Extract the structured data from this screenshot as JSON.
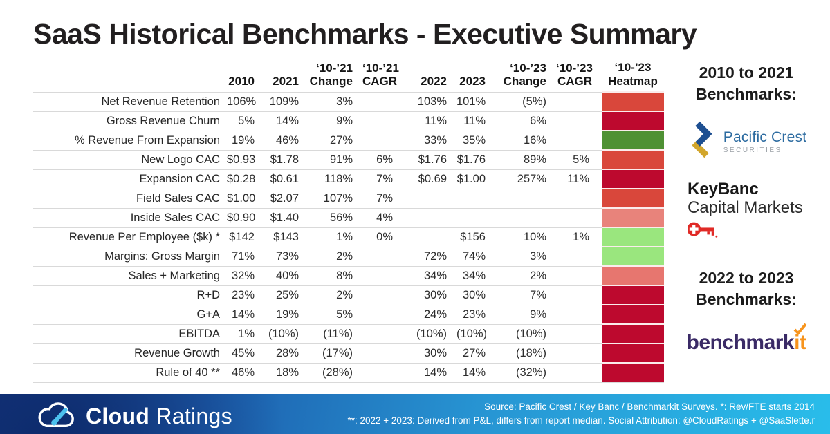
{
  "title": "SaaS Historical Benchmarks - Executive Summary",
  "chart_data": {
    "type": "table",
    "title": "SaaS Historical Benchmarks - Executive Summary",
    "columns": [
      {
        "top": "",
        "bottom": ""
      },
      {
        "top": "",
        "bottom": "2010"
      },
      {
        "top": "",
        "bottom": "2021"
      },
      {
        "top": "‘10-’21",
        "bottom": "Change"
      },
      {
        "top": "‘10-’21",
        "bottom": "CAGR"
      },
      {
        "top": "",
        "bottom": "2022"
      },
      {
        "top": "",
        "bottom": "2023"
      },
      {
        "top": "‘10-’23",
        "bottom": "Change"
      },
      {
        "top": "‘10-’23",
        "bottom": "CAGR"
      },
      {
        "top": "‘10-’23",
        "bottom": "Heatmap"
      }
    ],
    "rows": [
      {
        "label": "Net Revenue Retention",
        "values": [
          "106%",
          "109%",
          "3%",
          "",
          "103%",
          "101%",
          "(5%)",
          ""
        ],
        "heat": "#d9473b"
      },
      {
        "label": "Gross Revenue Churn",
        "values": [
          "5%",
          "14%",
          "9%",
          "",
          "11%",
          "11%",
          "6%",
          ""
        ],
        "heat": "#bd092e"
      },
      {
        "label": "% Revenue From Expansion",
        "values": [
          "19%",
          "46%",
          "27%",
          "",
          "33%",
          "35%",
          "16%",
          ""
        ],
        "heat": "#4f9134"
      },
      {
        "label": "New Logo CAC",
        "values": [
          "$0.93",
          "$1.78",
          "91%",
          "6%",
          "$1.76",
          "$1.76",
          "89%",
          "5%"
        ],
        "heat": "#d9473b"
      },
      {
        "label": "Expansion CAC",
        "values": [
          "$0.28",
          "$0.61",
          "118%",
          "7%",
          "$0.69",
          "$1.00",
          "257%",
          "11%"
        ],
        "heat": "#bd092e"
      },
      {
        "label": "Field Sales CAC",
        "values": [
          "$1.00",
          "$2.07",
          "107%",
          "7%",
          "",
          "",
          "",
          ""
        ],
        "heat": "#d9473b"
      },
      {
        "label": "Inside Sales CAC",
        "values": [
          "$0.90",
          "$1.40",
          "56%",
          "4%",
          "",
          "",
          "",
          ""
        ],
        "heat": "#e8837b"
      },
      {
        "label": "Revenue Per Employee ($k) *",
        "values": [
          "$142",
          "$143",
          "1%",
          "0%",
          "",
          "$156",
          "10%",
          "1%"
        ],
        "heat": "#9ae67e"
      },
      {
        "label": "Margins: Gross Margin",
        "values": [
          "71%",
          "73%",
          "2%",
          "",
          "72%",
          "74%",
          "3%",
          ""
        ],
        "heat": "#9ae67e"
      },
      {
        "label": "Sales + Marketing",
        "values": [
          "32%",
          "40%",
          "8%",
          "",
          "34%",
          "34%",
          "2%",
          ""
        ],
        "heat": "#e7766f"
      },
      {
        "label": "R+D",
        "values": [
          "23%",
          "25%",
          "2%",
          "",
          "30%",
          "30%",
          "7%",
          ""
        ],
        "heat": "#bd092e"
      },
      {
        "label": "G+A",
        "values": [
          "14%",
          "19%",
          "5%",
          "",
          "24%",
          "23%",
          "9%",
          ""
        ],
        "heat": "#bd092e"
      },
      {
        "label": "EBITDA",
        "values": [
          "1%",
          "(10%)",
          "(11%)",
          "",
          "(10%)",
          "(10%)",
          "(10%)",
          ""
        ],
        "heat": "#bd092e"
      },
      {
        "label": "Revenue Growth",
        "values": [
          "45%",
          "28%",
          "(17%)",
          "",
          "30%",
          "27%",
          "(18%)",
          ""
        ],
        "heat": "#bd092e"
      },
      {
        "label": "Rule of 40 **",
        "values": [
          "46%",
          "18%",
          "(28%)",
          "",
          "14%",
          "14%",
          "(32%)",
          ""
        ],
        "heat": "#bd092e"
      }
    ]
  },
  "sidebar": {
    "heading_2010_line1": "2010 to 2021",
    "heading_2010_line2": "Benchmarks:",
    "heading_2022_line1": "2022 to 2023",
    "heading_2022_line2": "Benchmarks:",
    "pacific_crest": {
      "name": "Pacific Crest",
      "sub": "SECURITIES"
    },
    "keybanc": {
      "line1": "KeyBanc",
      "line2": "Capital Markets"
    },
    "benchmarkit": {
      "part1": "benchmark",
      "part2": "it"
    }
  },
  "footer": {
    "brand_bold": "Cloud",
    "brand_light": " Ratings",
    "note_line1": "Source: Pacific Crest / Key Banc / Benchmarkit Surveys.  *: Rev/FTE starts 2014",
    "note_line2": "**: 2022 + 2023: Derived from P&L, differs from report median. Social Attribution: @CloudRatings + @SaaSlette.r"
  },
  "colors": {
    "heat_red": "#d9473b",
    "heat_dark_red": "#bd092e",
    "heat_green": "#4f9134",
    "heat_light_green": "#9ae67e",
    "heat_salmon": "#e8837b",
    "footer_gradient_start": "#173a85",
    "footer_gradient_end": "#29bdea",
    "pacific_crest_blue": "#2c6ba0",
    "keybanc_red": "#e02a26",
    "benchmarkit_purple": "#3a2a66",
    "benchmarkit_orange": "#f7941d"
  }
}
